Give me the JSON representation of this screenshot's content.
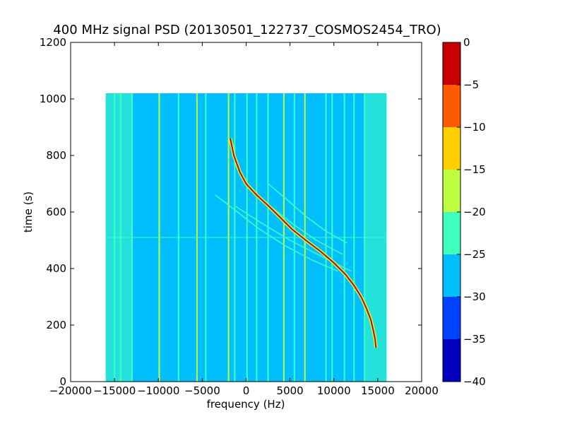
{
  "chart_data": {
    "type": "heatmap",
    "title": "400 MHz signal PSD (20130501_122737_COSMOS2454_TRO)",
    "xlabel": "frequency (Hz)",
    "ylabel": "time (s)",
    "xlim": [
      -20000,
      20000
    ],
    "ylim": [
      0,
      1200
    ],
    "xticks": [
      -20000,
      -15000,
      -10000,
      -5000,
      0,
      5000,
      10000,
      15000,
      20000
    ],
    "xtick_labels": [
      "−20000",
      "−15000",
      "−10000",
      "−5000",
      "0",
      "5000",
      "10000",
      "15000",
      "20000"
    ],
    "yticks": [
      0,
      200,
      400,
      600,
      800,
      1000,
      1200
    ],
    "ytick_labels": [
      "0",
      "200",
      "400",
      "600",
      "800",
      "1000",
      "1200"
    ],
    "data_extent": {
      "freq_min": -16000,
      "freq_max": 16000,
      "time_min": 0,
      "time_max": 1020
    },
    "background_level": -27.5,
    "edge_noise_level": -22.5,
    "horizontal_glitch_time": 510,
    "carrier_lines": [
      {
        "freq": -15000,
        "level": -22.5
      },
      {
        "freq": -14300,
        "level": -22.5
      },
      {
        "freq": -13000,
        "level": -22.5
      },
      {
        "freq": -9900,
        "level": -17.5
      },
      {
        "freq": -7700,
        "level": -22.5
      },
      {
        "freq": -5600,
        "level": -17.5
      },
      {
        "freq": -4600,
        "level": -22.5
      },
      {
        "freq": -2000,
        "level": -17.5
      },
      {
        "freq": -1300,
        "level": -22.5
      },
      {
        "freq": 100,
        "level": -22.5
      },
      {
        "freq": 1200,
        "level": -22.5
      },
      {
        "freq": 2500,
        "level": -22.5
      },
      {
        "freq": 4300,
        "level": -17.5
      },
      {
        "freq": 5500,
        "level": -22.5
      },
      {
        "freq": 6700,
        "level": -17.5
      },
      {
        "freq": 9100,
        "level": -22.5
      },
      {
        "freq": 9800,
        "level": -22.5
      },
      {
        "freq": 11200,
        "level": -22.5
      },
      {
        "freq": 12300,
        "level": -22.5
      },
      {
        "freq": 13500,
        "level": -22.5
      }
    ],
    "doppler_trace": {
      "level": -2.5,
      "points": [
        {
          "time": 860,
          "freq": -1800
        },
        {
          "time": 800,
          "freq": -1400
        },
        {
          "time": 740,
          "freq": -700
        },
        {
          "time": 700,
          "freq": 0
        },
        {
          "time": 660,
          "freq": 1200
        },
        {
          "time": 620,
          "freq": 2600
        },
        {
          "time": 580,
          "freq": 3900
        },
        {
          "time": 540,
          "freq": 5200
        },
        {
          "time": 500,
          "freq": 6800
        },
        {
          "time": 460,
          "freq": 8500
        },
        {
          "time": 420,
          "freq": 10000
        },
        {
          "time": 380,
          "freq": 11300
        },
        {
          "time": 340,
          "freq": 12300
        },
        {
          "time": 300,
          "freq": 13100
        },
        {
          "time": 260,
          "freq": 13700
        },
        {
          "time": 220,
          "freq": 14200
        },
        {
          "time": 180,
          "freq": 14500
        },
        {
          "time": 150,
          "freq": 14700
        },
        {
          "time": 120,
          "freq": 14800
        }
      ]
    },
    "secondary_traces": [
      {
        "level": -22.5,
        "points": [
          {
            "time": 660,
            "freq": -3500
          },
          {
            "time": 600,
            "freq": -1000
          },
          {
            "time": 540,
            "freq": 1500
          },
          {
            "time": 480,
            "freq": 4500
          },
          {
            "time": 430,
            "freq": 7500
          },
          {
            "time": 390,
            "freq": 10500
          }
        ]
      },
      {
        "level": -22.5,
        "points": [
          {
            "time": 620,
            "freq": -1200
          },
          {
            "time": 560,
            "freq": 1800
          },
          {
            "time": 500,
            "freq": 5000
          },
          {
            "time": 440,
            "freq": 8800
          },
          {
            "time": 390,
            "freq": 12000
          }
        ]
      },
      {
        "level": -22.5,
        "points": [
          {
            "time": 680,
            "freq": 600
          },
          {
            "time": 620,
            "freq": 2800
          },
          {
            "time": 560,
            "freq": 5200
          },
          {
            "time": 500,
            "freq": 8000
          },
          {
            "time": 450,
            "freq": 11000
          }
        ]
      },
      {
        "level": -22.5,
        "points": [
          {
            "time": 700,
            "freq": 2500
          },
          {
            "time": 640,
            "freq": 4800
          },
          {
            "time": 580,
            "freq": 7000
          },
          {
            "time": 530,
            "freq": 9200
          },
          {
            "time": 490,
            "freq": 11500
          }
        ]
      }
    ],
    "colorbar": {
      "levels": [
        -40,
        -35,
        -30,
        -25,
        -20,
        -15,
        -10,
        -5,
        0
      ],
      "tick_labels": [
        "−40",
        "−35",
        "−30",
        "−25",
        "−20",
        "−15",
        "−10",
        "−5",
        "0"
      ],
      "colors": [
        "#0000be",
        "#0040ff",
        "#00bfff",
        "#3fffbe",
        "#bfff3f",
        "#ffcf00",
        "#ff5a00",
        "#c80000"
      ]
    }
  }
}
